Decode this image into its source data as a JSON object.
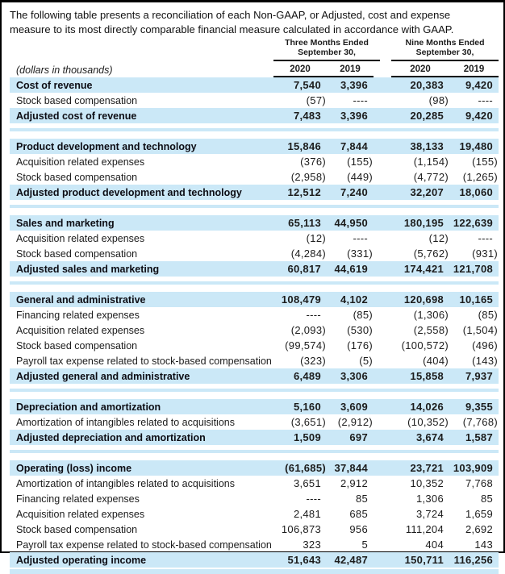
{
  "intro": "The following table presents a reconciliation of each Non-GAAP, or Adjusted, cost and expense measure to its most directly comparable financial measure calculated in accordance with GAAP.",
  "colors": {
    "row_highlight": "#cbe8f7",
    "text": "#1c1c1c",
    "rule_line": "#000000"
  },
  "table": {
    "units_label": "(dollars in thousands)",
    "col_groups": [
      {
        "line1": "Three Months Ended",
        "line2": "September 30,"
      },
      {
        "line1": "Nine Months Ended",
        "line2": "September 30,"
      }
    ],
    "year_headers": [
      "2020",
      "2019",
      "2020",
      "2019"
    ],
    "sections": [
      {
        "rows": [
          {
            "label": "Cost of revenue",
            "emphasis": true,
            "values": [
              "7,540",
              "3,396",
              "20,383",
              "9,420"
            ]
          },
          {
            "label": "Stock based compensation",
            "emphasis": false,
            "values": [
              "(57)",
              "----",
              "(98)",
              "----"
            ]
          },
          {
            "label": "Adjusted cost of revenue",
            "emphasis": true,
            "values": [
              "7,483",
              "3,396",
              "20,285",
              "9,420"
            ]
          }
        ]
      },
      {
        "rows": [
          {
            "label": "Product development and technology",
            "emphasis": true,
            "values": [
              "15,846",
              "7,844",
              "38,133",
              "19,480"
            ]
          },
          {
            "label": "Acquisition related expenses",
            "emphasis": false,
            "values": [
              "(376)",
              "(155)",
              "(1,154)",
              "(155)"
            ]
          },
          {
            "label": "Stock based compensation",
            "emphasis": false,
            "values": [
              "(2,958)",
              "(449)",
              "(4,772)",
              "(1,265)"
            ]
          },
          {
            "label": "Adjusted product development and technology",
            "emphasis": true,
            "values": [
              "12,512",
              "7,240",
              "32,207",
              "18,060"
            ]
          }
        ]
      },
      {
        "rows": [
          {
            "label": "Sales and marketing",
            "emphasis": true,
            "values": [
              "65,113",
              "44,950",
              "180,195",
              "122,639"
            ]
          },
          {
            "label": "Acquisition related expenses",
            "emphasis": false,
            "values": [
              "(12)",
              "----",
              "(12)",
              "----"
            ]
          },
          {
            "label": "Stock based compensation",
            "emphasis": false,
            "values": [
              "(4,284)",
              "(331)",
              "(5,762)",
              "(931)"
            ]
          },
          {
            "label": "Adjusted sales and marketing",
            "emphasis": true,
            "values": [
              "60,817",
              "44,619",
              "174,421",
              "121,708"
            ]
          }
        ]
      },
      {
        "rows": [
          {
            "label": "General and administrative",
            "emphasis": true,
            "values": [
              "108,479",
              "4,102",
              "120,698",
              "10,165"
            ]
          },
          {
            "label": "Financing related expenses",
            "emphasis": false,
            "values": [
              "----",
              "(85)",
              "(1,306)",
              "(85)"
            ]
          },
          {
            "label": "Acquisition related expenses",
            "emphasis": false,
            "values": [
              "(2,093)",
              "(530)",
              "(2,558)",
              "(1,504)"
            ]
          },
          {
            "label": "Stock based compensation",
            "emphasis": false,
            "values": [
              "(99,574)",
              "(176)",
              "(100,572)",
              "(496)"
            ]
          },
          {
            "label": "Payroll tax expense related to stock-based compensation",
            "emphasis": false,
            "values": [
              "(323)",
              "(5)",
              "(404)",
              "(143)"
            ]
          },
          {
            "label": "Adjusted general and administrative",
            "emphasis": true,
            "values": [
              "6,489",
              "3,306",
              "15,858",
              "7,937"
            ]
          }
        ]
      },
      {
        "rows": [
          {
            "label": "Depreciation and amortization",
            "emphasis": true,
            "values": [
              "5,160",
              "3,609",
              "14,026",
              "9,355"
            ]
          },
          {
            "label": "Amortization of intangibles related to acquisitions",
            "emphasis": false,
            "values": [
              "(3,651)",
              "(2,912)",
              "(10,352)",
              "(7,768)"
            ]
          },
          {
            "label": "Adjusted depreciation and amortization",
            "emphasis": true,
            "values": [
              "1,509",
              "697",
              "3,674",
              "1,587"
            ]
          }
        ]
      },
      {
        "rows": [
          {
            "label": "Operating (loss) income",
            "emphasis": true,
            "values": [
              "(61,685)",
              "37,844",
              "23,721",
              "103,909"
            ]
          },
          {
            "label": "Amortization of intangibles related to acquisitions",
            "emphasis": false,
            "values": [
              "3,651",
              "2,912",
              "10,352",
              "7,768"
            ]
          },
          {
            "label": "Financing related expenses",
            "emphasis": false,
            "values": [
              "----",
              "85",
              "1,306",
              "85"
            ]
          },
          {
            "label": "Acquisition related expenses",
            "emphasis": false,
            "values": [
              "2,481",
              "685",
              "3,724",
              "1,659"
            ]
          },
          {
            "label": "Stock based compensation",
            "emphasis": false,
            "values": [
              "106,873",
              "956",
              "111,204",
              "2,692"
            ]
          },
          {
            "label": "Payroll tax expense related to stock-based compensation",
            "emphasis": false,
            "values": [
              "323",
              "5",
              "404",
              "143"
            ]
          },
          {
            "label": "Adjusted operating income",
            "emphasis": true,
            "values": [
              "51,643",
              "42,487",
              "150,711",
              "116,256"
            ]
          }
        ]
      }
    ]
  }
}
